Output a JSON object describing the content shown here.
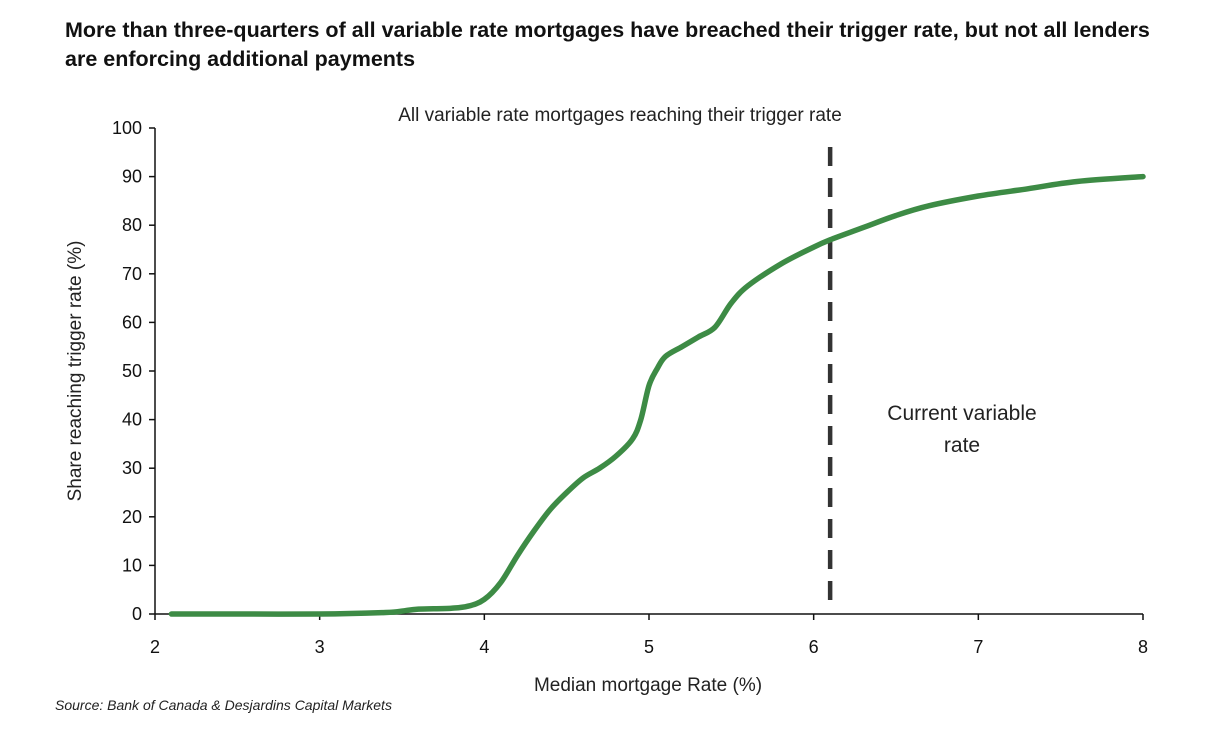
{
  "title": "More than three-quarters of all variable rate mortgages have breached their trigger rate, but not all lenders are enforcing additional payments",
  "source": "Source: Bank of Canada & Desjardins Capital Markets",
  "colors": {
    "series": "#3d8b45",
    "marker": "#333333",
    "axis": "#111111"
  },
  "chart_data": {
    "type": "line",
    "title": "",
    "xlabel": "Median mortgage Rate (%)",
    "ylabel": "Share reaching trigger rate (%)",
    "xlim": [
      2,
      8
    ],
    "ylim": [
      0,
      100
    ],
    "x_ticks": [
      2,
      3,
      4,
      5,
      6,
      7,
      8
    ],
    "y_ticks": [
      0,
      10,
      20,
      30,
      40,
      50,
      60,
      70,
      80,
      90,
      100
    ],
    "grid": false,
    "series": [
      {
        "name": "All variable rate mortgages reaching their trigger rate",
        "x": [
          2.1,
          2.5,
          3.0,
          3.4,
          3.5,
          3.6,
          3.8,
          3.9,
          4.0,
          4.1,
          4.2,
          4.3,
          4.4,
          4.5,
          4.6,
          4.7,
          4.8,
          4.9,
          4.95,
          5.0,
          5.05,
          5.1,
          5.2,
          5.3,
          5.4,
          5.5,
          5.6,
          5.8,
          6.0,
          6.1,
          6.3,
          6.5,
          6.7,
          7.0,
          7.3,
          7.6,
          8.0
        ],
        "y": [
          0,
          0,
          0,
          0.3,
          0.6,
          1.0,
          1.2,
          1.6,
          3.0,
          6.5,
          12,
          17,
          21.5,
          25,
          28,
          30,
          32.5,
          36,
          40,
          47,
          50.5,
          53,
          55,
          57,
          59,
          64,
          67.5,
          72,
          75.5,
          77,
          79.5,
          82,
          84,
          86,
          87.5,
          89,
          90
        ]
      }
    ],
    "annotations": [
      {
        "type": "vline",
        "x": 6.1,
        "label": [
          "Current variable",
          "rate"
        ]
      }
    ]
  }
}
